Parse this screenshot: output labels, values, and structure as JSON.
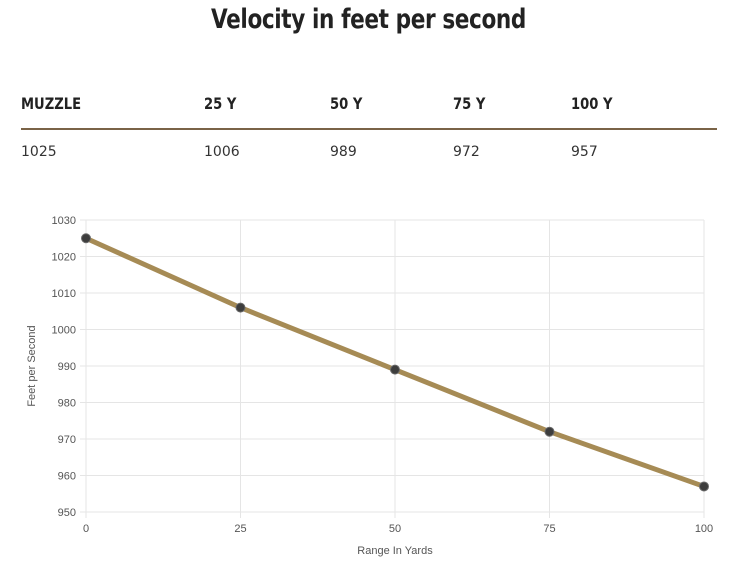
{
  "title": "Velocity in feet per second",
  "table": {
    "headers": [
      "MUZZLE",
      "25 Y",
      "50 Y",
      "75 Y",
      "100 Y"
    ],
    "values": [
      "1025",
      "1006",
      "989",
      "972",
      "957"
    ]
  },
  "colors": {
    "line": "#a68b55",
    "point": "#3d3d3d",
    "divider": "#7a6347",
    "grid": "#e5e5e5"
  },
  "chart_data": {
    "type": "line",
    "title": "",
    "xlabel": "Range In Yards",
    "ylabel": "Feet per Second",
    "x": [
      0,
      25,
      50,
      75,
      100
    ],
    "series": [
      {
        "values": [
          1025,
          1006,
          989,
          972,
          957
        ]
      }
    ],
    "xlim": [
      0,
      100
    ],
    "ylim": [
      950,
      1030
    ],
    "xticks": [
      0,
      25,
      50,
      75,
      100
    ],
    "yticks": [
      950,
      960,
      970,
      980,
      990,
      1000,
      1010,
      1020,
      1030
    ],
    "grid": true,
    "legend": "none"
  }
}
